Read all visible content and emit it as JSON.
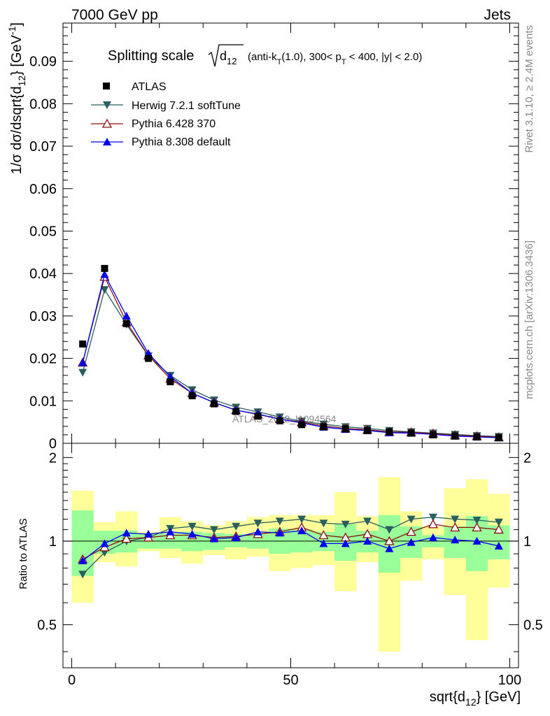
{
  "header": {
    "left": "7000 GeV pp",
    "right": "Jets"
  },
  "side_text": {
    "rivet": "Rivet 3.1.10, ≥ 2.4M events",
    "mcplots": "mcplots.cern.ch [arXiv:1306.3436]"
  },
  "watermark": "ATLAS_2012_I1094564",
  "title": {
    "prefix": "Splitting scale",
    "sqrt_base": "d",
    "sqrt_sub": "12",
    "details_a": "(anti-k",
    "details_a_sub": "T",
    "details_b": "(1.0), 300< p",
    "details_b_sub": "T",
    "details_c": " < 400, |y| < 2.0)"
  },
  "colors": {
    "atlas": "#000000",
    "herwig": "#2a5f5f",
    "pythia6": "#8b1010",
    "pythia8": "#0000ee",
    "band_inner": "#99ff99",
    "band_outer": "#ffff99"
  },
  "chart_data": [
    {
      "type": "scatter",
      "panel": "main",
      "x": [
        2.5,
        7.5,
        12.5,
        17.5,
        22.5,
        27.5,
        32.5,
        37.5,
        42.5,
        47.5,
        52.5,
        57.5,
        62.5,
        67.5,
        72.5,
        77.5,
        82.5,
        87.5,
        92.5,
        97.5
      ],
      "xlim": [
        -2,
        102
      ],
      "ylim": [
        0,
        0.099
      ],
      "ylabel": "1/σ dσ/dsqrt{d",
      "ylabel_sub": "12",
      "ylabel_tail": "} [GeV",
      "ylabel_sup": "-1",
      "ylabel_end": "]",
      "yticks": [
        0,
        0.01,
        0.02,
        0.03,
        0.04,
        0.05,
        0.06,
        0.07,
        0.08,
        0.09
      ],
      "ytick_labels": [
        "0",
        "0.01",
        "0.02",
        "0.03",
        "0.04",
        "0.05",
        "0.06",
        "0.07",
        "0.08",
        "0.09"
      ],
      "legend_position": "top-left",
      "series": [
        {
          "name": "ATLAS",
          "marker": "square",
          "values": [
            0.0234,
            0.0412,
            0.0282,
            0.02,
            0.0145,
            0.0112,
            0.0093,
            0.0075,
            0.0064,
            0.0053,
            0.0044,
            0.0039,
            0.0034,
            0.003,
            0.0027,
            0.0024,
            0.002,
            0.0017,
            0.0015,
            0.0013
          ]
        },
        {
          "name": "Herwig 7.2.1 softTune",
          "marker": "triangle-down",
          "values": [
            0.0167,
            0.0362,
            0.028,
            0.0206,
            0.016,
            0.0126,
            0.0102,
            0.0085,
            0.0074,
            0.0062,
            0.0052,
            0.0045,
            0.0039,
            0.0035,
            0.003,
            0.0027,
            0.0024,
            0.0021,
            0.0018,
            0.0016
          ]
        },
        {
          "name": "Pythia 6.428 370",
          "marker": "triangle-up-open",
          "values": [
            0.019,
            0.0392,
            0.0285,
            0.0207,
            0.0152,
            0.0118,
            0.0096,
            0.0078,
            0.0068,
            0.0057,
            0.005,
            0.0041,
            0.0035,
            0.0032,
            0.0027,
            0.0026,
            0.0023,
            0.0019,
            0.0017,
            0.0014
          ]
        },
        {
          "name": "Pythia 8.308 default",
          "marker": "triangle-up",
          "values": [
            0.019,
            0.0398,
            0.03,
            0.0212,
            0.0157,
            0.0118,
            0.0096,
            0.0078,
            0.0069,
            0.0057,
            0.0048,
            0.0038,
            0.0033,
            0.003,
            0.0025,
            0.0024,
            0.0021,
            0.0017,
            0.0015,
            0.0013
          ]
        }
      ]
    },
    {
      "type": "line",
      "panel": "ratio",
      "x": [
        2.5,
        7.5,
        12.5,
        17.5,
        22.5,
        27.5,
        32.5,
        37.5,
        42.5,
        47.5,
        52.5,
        57.5,
        62.5,
        67.5,
        72.5,
        77.5,
        82.5,
        87.5,
        92.5,
        97.5
      ],
      "bin_edges": [
        0,
        5,
        10,
        15,
        20,
        25,
        30,
        35,
        40,
        45,
        50,
        55,
        60,
        65,
        70,
        75,
        80,
        85,
        90,
        95,
        100
      ],
      "xlim": [
        -2,
        102
      ],
      "ylim": [
        0.35,
        2.25
      ],
      "xlabel": "sqrt{d",
      "xlabel_sub": "12",
      "xlabel_tail": "} [GeV]",
      "xticks": [
        0,
        50,
        100
      ],
      "xtick_labels": [
        "0",
        "50",
        "100"
      ],
      "ylabel": "Ratio to ATLAS",
      "yticks": [
        0.5,
        1,
        2
      ],
      "ytick_labels": [
        "0.5",
        "1",
        "2"
      ],
      "band_inner": {
        "low": [
          0.75,
          0.9,
          0.91,
          0.94,
          0.94,
          0.92,
          0.93,
          0.95,
          0.94,
          0.9,
          0.91,
          0.92,
          0.85,
          0.91,
          0.77,
          0.87,
          0.95,
          0.87,
          0.78,
          0.86
        ],
        "high": [
          1.29,
          1.09,
          1.09,
          1.06,
          1.07,
          1.08,
          1.07,
          1.06,
          1.06,
          1.11,
          1.1,
          1.08,
          1.15,
          1.09,
          1.24,
          1.13,
          1.05,
          1.13,
          1.23,
          1.14
        ]
      },
      "band_outer": {
        "low": [
          0.6,
          0.84,
          0.81,
          0.92,
          0.87,
          0.83,
          0.89,
          0.86,
          0.88,
          0.78,
          0.8,
          0.82,
          0.66,
          0.84,
          0.4,
          0.72,
          0.86,
          0.64,
          0.44,
          0.68
        ],
        "high": [
          1.52,
          1.17,
          1.28,
          1.08,
          1.22,
          1.18,
          1.14,
          1.18,
          1.22,
          1.24,
          1.24,
          1.24,
          1.5,
          1.23,
          1.7,
          1.28,
          1.13,
          1.55,
          1.67,
          1.48
        ]
      },
      "series": [
        {
          "name": "Herwig 7.2.1 softTune",
          "values": [
            0.76,
            0.91,
            1.0,
            1.03,
            1.11,
            1.13,
            1.1,
            1.13,
            1.16,
            1.18,
            1.2,
            1.16,
            1.15,
            1.18,
            1.1,
            1.2,
            1.22,
            1.2,
            1.19,
            1.17
          ]
        },
        {
          "name": "Pythia 6.428 370",
          "values": [
            0.86,
            0.95,
            1.02,
            1.03,
            1.05,
            1.05,
            1.03,
            1.04,
            1.06,
            1.08,
            1.12,
            1.05,
            1.03,
            1.06,
            1.0,
            1.08,
            1.15,
            1.12,
            1.12,
            1.1
          ]
        },
        {
          "name": "Pythia 8.308 default",
          "values": [
            0.85,
            0.98,
            1.07,
            1.06,
            1.08,
            1.06,
            1.02,
            1.03,
            1.08,
            1.07,
            1.09,
            0.98,
            0.98,
            1.0,
            0.94,
            0.99,
            1.03,
            1.01,
            1.0,
            0.96
          ]
        }
      ]
    }
  ]
}
